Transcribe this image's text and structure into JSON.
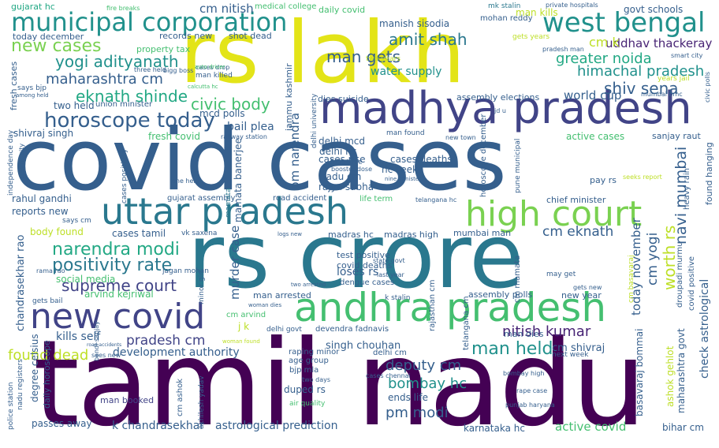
{
  "words": {
    "tamil_nadu": "tamil nadu",
    "covid_cases": "covid cases",
    "rs_crore": "rs crore",
    "rs_lakh": "rs lakh",
    "madhya_pradesh": "madhya pradesh",
    "uttar_pradesh": "uttar pradesh",
    "andhra_pradesh": "andhra pradesh",
    "high_court": "high court",
    "new_covid": "new covid",
    "municipal_corporation": "municipal corporation",
    "west_bengal": "west bengal",
    "new_cases": "new cases",
    "horoscope_today": "horoscope today",
    "yogi_adityanath": "yogi adityanath",
    "maharashtra_cm": "maharashtra cm",
    "eknath_shinde": "eknath shinde",
    "civic_body": "civic body",
    "narendra_modi": "narendra modi",
    "positivity_rate": "positivity rate",
    "supreme_court": "supreme court",
    "amit_shah": "amit shah",
    "man_gets": "man gets",
    "water_supply": "water supply",
    "uddhav_thackeray": "uddhav thackeray",
    "greater_noida": "greater noida",
    "himachal_pradesh": "himachal pradesh",
    "shiv_sena": "shiv sena",
    "world_cup": "world cup",
    "man_held": "man held",
    "nitish_kumar": "nitish kumar",
    "deputy_cm": "deputy cm",
    "bombay_hc": "bombay hc",
    "pm_modi": "pm modi",
    "cm_eknath": "cm eknath",
    "found_dead": "found dead",
    "pradesh_cm": "pradesh cm",
    "kills_self": "kills self",
    "development_authority": "development authority",
    "k_chandrasekhar": "k chandrasekhar",
    "astrological_prediction": "astrological prediction",
    "active_covid": "active covid",
    "karnataka_hc": "karnataka hc",
    "bihar_cm": "bihar cm",
    "passes_away": "passes away",
    "man_booked": "man booked",
    "gujarat_hc": "gujarat hc",
    "cm_nitish": "cm nitish",
    "medical_college": "medical college",
    "daily_covid": "daily covid",
    "man_kills": "man kills",
    "govt_schools": "govt schools",
    "mk_stalin": "mk stalin",
    "mohan_reddy": "mohan reddy",
    "private_hospitals": "private hospitals",
    "manish_sisodia": "manish sisodia",
    "fire_breaks": "fire breaks",
    "today_december": "today december",
    "records_new": "records new",
    "shot_dead": "shot dead",
    "property_tax": "property tax",
    "three_held": "three held",
    "bigg_boss": "bigg boss",
    "cases_drop": "cases drop",
    "man_killed": "man killed",
    "two_years": "two years",
    "gets_years": "gets years",
    "pradesh_man": "pradesh man",
    "smart_city": "smart city",
    "cm_k": "cm k",
    "says_bjp": "says bjp",
    "among_held": "among held",
    "calcutta_hc": "calcutta hc",
    "two_held": "two held",
    "union_minister": "union minister",
    "dies_suicide": "dies suicide",
    "assembly_elections": "assembly elections",
    "mumbai_bmc": "mumbai bmc",
    "years_jail": "years jail",
    "civic_polls": "civic polls",
    "shivraj_singh": "shivraj singh",
    "mcd_polls": "mcd polls",
    "bail_plea": "bail plea",
    "fresh_covid": "fresh covid",
    "railway_station": "railway station",
    "delhi_mcd": "delhi mcd",
    "delhi_hc": "delhi hc",
    "man_found": "man found",
    "new_town": "new town",
    "active_cases": "active cases",
    "sanjay_raut": "sanjay raut",
    "seeks_report": "seeks report",
    "jd_u": "jd u",
    "fresh_cases": "fresh cases",
    "cases_positivity": "cases positivity",
    "nashik_city": "nashik city",
    "independence_day": "independence day",
    "one_held": "one held",
    "booster_dose": "booster dose",
    "first_time": "first time",
    "cases_rise": "cases rise",
    "cases_deaths": "cases deaths",
    "hc_seeks": "hc seeks",
    "nadu_cm": "nadu cm",
    "rajya_sabha": "rajya sabha",
    "nine_minister": "nine minister",
    "gujarat_assembly": "gujarat assembly",
    "road_accident": "road accident",
    "life_term": "life term",
    "telangana_hc": "telangana hc",
    "pay_rs": "pay rs",
    "chief_minister": "chief minister",
    "heavy_rain": "heavy rain",
    "found_hanging": "found hanging",
    "rahul_gandhi": "rahul gandhi",
    "reports_new": "reports new",
    "says_cm": "says cm",
    "body_found": "body found",
    "cases_tamil": "cases tamil",
    "vk_saxena": "vk saxena",
    "logs_new": "logs new",
    "madras_hc": "madras hc",
    "madras_high": "madras high",
    "mumbai_man": "mumbai man",
    "test_positive": "test positive",
    "covid_deaths": "covid deaths",
    "rama_rao": "rama rao",
    "loses_rs": "loses rs",
    "state_govt": "state govt",
    "jagan_mohan": "jagan mohan",
    "social_media": "social media",
    "dengue_cases": "dengue cases",
    "last_year": "last year",
    "may_get": "may get",
    "arvind_kejriwal": "arvind kejriwal",
    "two_arrested": "two arrested",
    "gets_new": "gets new",
    "new_year": "new year",
    "gets_bail": "gets bail",
    "man_arrested": "man arrested",
    "k_stalin": "k stalin",
    "assembly_polls": "assembly polls",
    "cm_arvind": "cm arvind",
    "woman_dies": "woman dies",
    "j_k": "j k",
    "delhi_govt": "delhi govt",
    "devendra_fadnavis": "devendra fadnavis",
    "man_dies": "man dies",
    "cm_shivraj": "cm shivraj",
    "singh_chouhan": "singh chouhan",
    "delhi_cm": "delhi cm",
    "next_week": "next week",
    "road_accidents": "road accidents",
    "sees_new": "sees new",
    "woman_found": "woman found",
    "raping_minor": "raping minor",
    "age_group": "age group",
    "bjp_mla": "bjp mla",
    "two_days": "two days",
    "duped_rs": "duped rs",
    "cases_chennai": "cases chennai",
    "ends_life": "ends life",
    "air_quality": "air quality",
    "bombay_high": "bombay high",
    "rape_case": "rape case",
    "punjab_haryana": "punjab haryana",
    "auto_driver": "auto driver",
    "mamata": "mamata",
    "mamata_banerjee": "mamata banerjee",
    "murder_case": "murder case",
    "today_november": "today november",
    "cm_yogi": "cm yogi",
    "worth_rs": "worth rs",
    "navi_mumbai": "navi mumbai",
    "pm_narendra": "pm narendra",
    "jammu_kashmir": "jammu kashmir",
    "delhi_university": "delhi university",
    "horoscope_december": "horoscope december",
    "pune_municipal": "pune municipal",
    "cm_mamata": "cm mamata",
    "cm_basavaraj": "cm basavaraj",
    "droupadi_murmu": "droupadi murmu",
    "covid_positive": "covid positive",
    "check_astrological": "check astrological",
    "basavaraj_bommai": "basavaraj bommai",
    "ashok_gehlot": "ashok gehlot",
    "maharashtra_govt": "maharashtra govt",
    "rajasthan_cm": "rajasthan cm",
    "telangana_cm": "telangana cm",
    "minor_girl": "minor girl",
    "chandrasekhar_rao": "chandrasekhar rao",
    "degree_celsius": "degree celsius",
    "daily_horoscope": "daily horoscope",
    "nadu_registers": "nadu registers",
    "police_station": "police station",
    "akhilesh_yadav": "akhilesh yadav",
    "cm_ashok": "cm ashok",
    "bandi_sanjay": "bandi sanjay"
  }
}
